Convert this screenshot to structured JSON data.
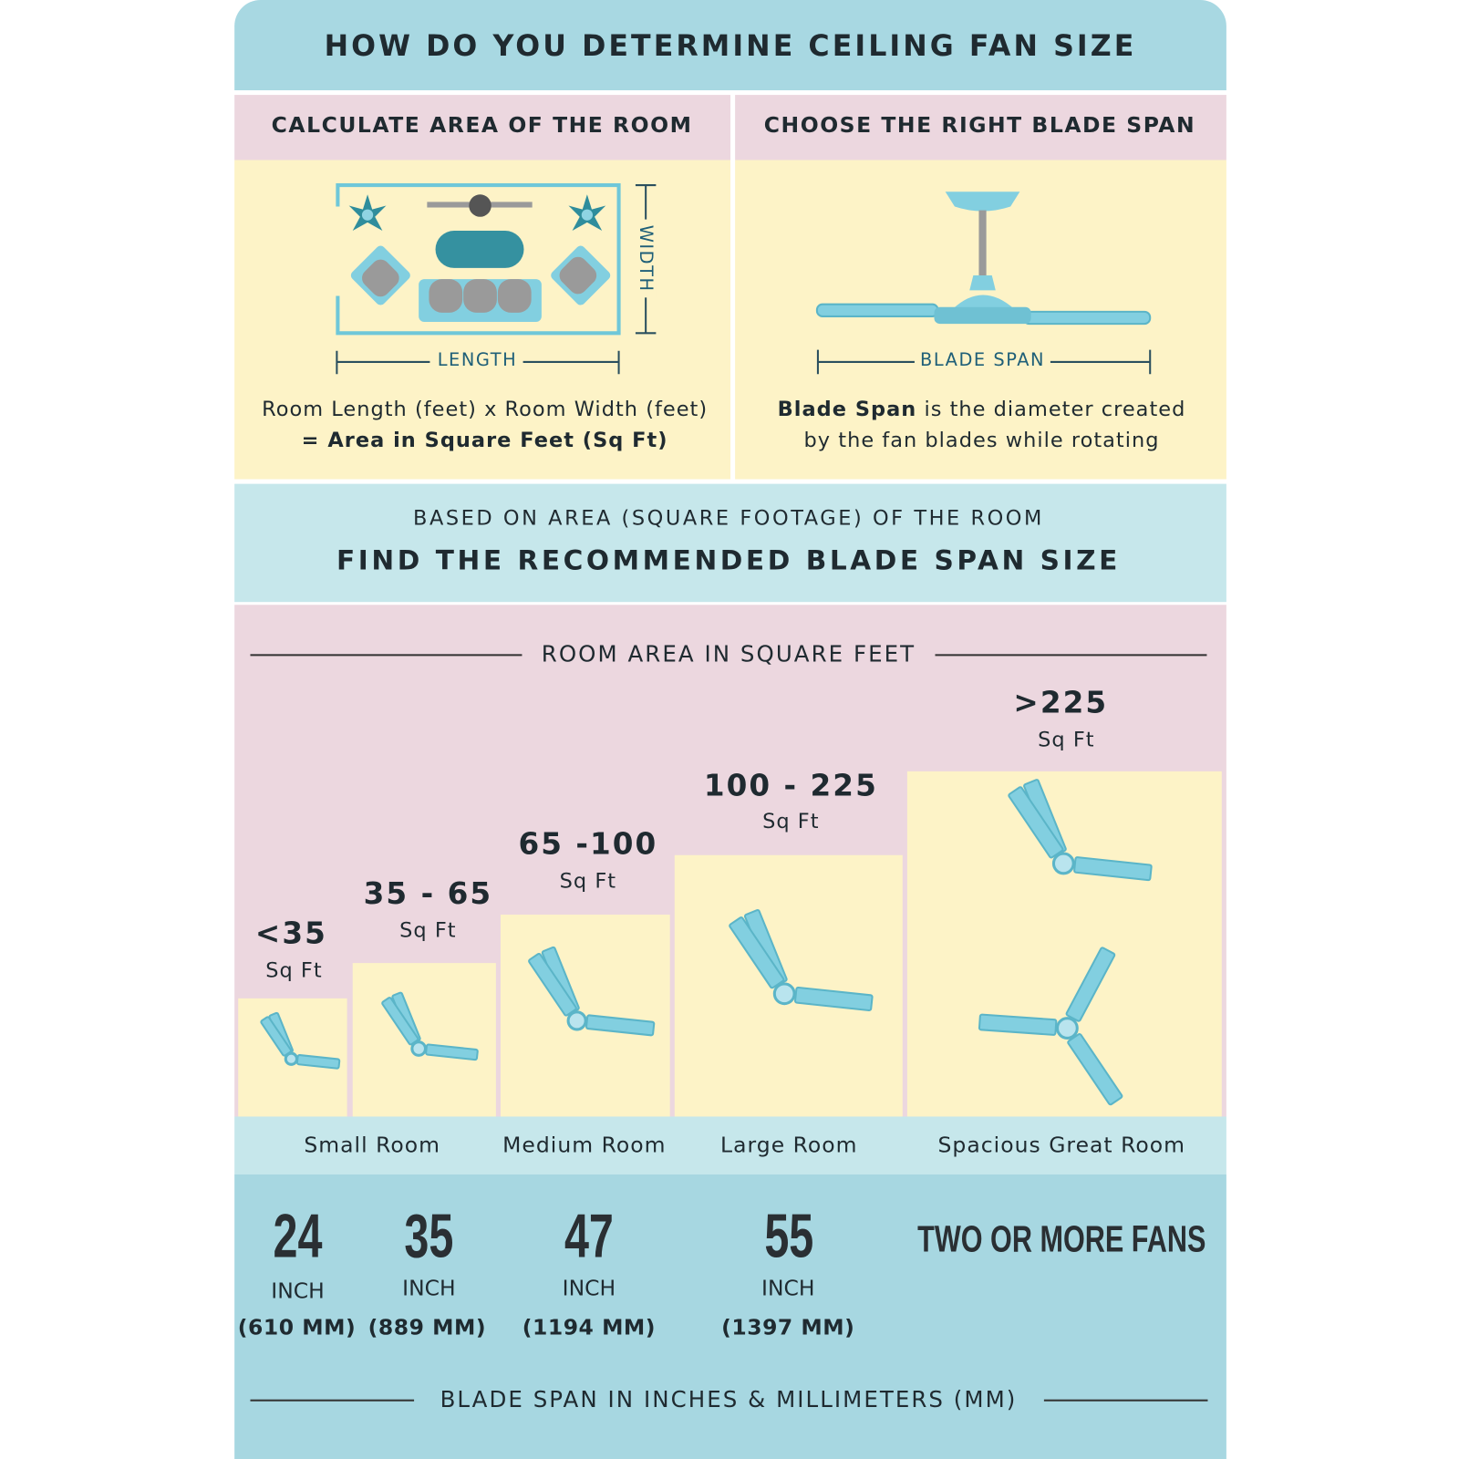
{
  "title": "HOW DO YOU DETERMINE CEILING FAN SIZE",
  "left_panel": {
    "heading": "CALCULATE AREA OF THE ROOM",
    "width_label": "WIDTH",
    "length_label": "LENGTH",
    "formula_line1": "Room Length (feet) x Room Width (feet)",
    "formula_line2": "= Area in Square Feet (Sq Ft)"
  },
  "right_panel": {
    "heading": "CHOOSE THE RIGHT BLADE SPAN",
    "span_label": "BLADE SPAN",
    "desc_bold": "Blade Span",
    "desc_rest": " is the diameter created",
    "desc_line2": "by the fan blades while rotating"
  },
  "band": {
    "line1": "BASED ON AREA (SQUARE FOOTAGE) OF THE ROOM",
    "line2": "FIND THE RECOMMENDED BLADE SPAN SIZE"
  },
  "area_axis_label": "ROOM AREA IN SQUARE FEET",
  "tiers": [
    {
      "range": "<35",
      "unit": "Sq Ft",
      "inch": "24",
      "inch_label": "INCH",
      "mm": "(610 MM)",
      "fans": 1
    },
    {
      "range": "35 - 65",
      "unit": "Sq Ft",
      "inch": "35",
      "inch_label": "INCH",
      "mm": "(889 MM)",
      "fans": 1
    },
    {
      "range": "65 -100",
      "unit": "Sq Ft",
      "inch": "47",
      "inch_label": "INCH",
      "mm": "(1194 MM)",
      "fans": 1
    },
    {
      "range": "100 - 225",
      "unit": "Sq Ft",
      "inch": "55",
      "inch_label": "INCH",
      "mm": "(1397 MM)",
      "fans": 1
    },
    {
      "range": ">225",
      "unit": "Sq Ft",
      "recommendation": "TWO OR MORE FANS",
      "fans": 2
    }
  ],
  "room_types": [
    "Small Room",
    "Medium Room",
    "Large Room",
    "Spacious Great Room"
  ],
  "bottom_axis_label": "BLADE SPAN IN INCHES & MILLIMETERS (MM)",
  "colors": {
    "header_blue": "#a8d8e2",
    "pink": "#ecd7df",
    "yellow": "#fdf3c7",
    "light_blue": "#c6e7eb",
    "blade": "#82cfe0",
    "teal": "#3591a0"
  }
}
